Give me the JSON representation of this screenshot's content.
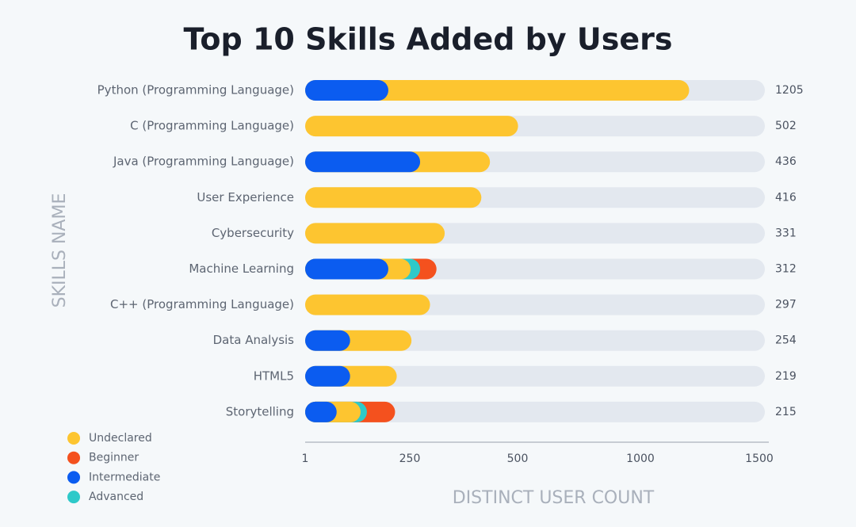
{
  "chart_data": {
    "type": "stacked_barh",
    "title": "Top 10 Skills Added by Users",
    "ylabel": "SKILLS NAME",
    "xlabel": "DISTINCT USER COUNT",
    "categories": [
      "Python (Programming Language)",
      "C (Programming Language)",
      "Java (Programming Language)",
      "User Experience",
      "Cybersecurity",
      "Machine Learning",
      "C++ (Programming Language)",
      "Data Analysis",
      "HTML5",
      "Storytelling"
    ],
    "totals": [
      1205,
      502,
      436,
      416,
      331,
      312,
      297,
      254,
      219,
      215
    ],
    "series": [
      {
        "name": "Intermediate",
        "color": "#0b5cf0",
        "values": [
          199,
          0,
          274,
          0,
          0,
          199,
          0,
          108,
          108,
          76
        ]
      },
      {
        "name": "Undeclared",
        "color": "#fdc530",
        "values": [
          1006,
          502,
          162,
          416,
          331,
          53,
          297,
          146,
          111,
          57
        ]
      },
      {
        "name": "Advanced",
        "color": "#2ec9c9",
        "values": [
          0,
          0,
          0,
          0,
          0,
          22,
          0,
          0,
          0,
          15
        ]
      },
      {
        "name": "Beginner",
        "color": "#f4511e",
        "values": [
          0,
          0,
          0,
          0,
          0,
          38,
          0,
          0,
          0,
          67
        ]
      }
    ],
    "legend_order": [
      "Undeclared",
      "Beginner",
      "Intermediate",
      "Advanced"
    ],
    "xlim": [
      1,
      1500
    ],
    "xticks": [
      1,
      250,
      500,
      1000,
      1500
    ],
    "track_color": "#e3e8ef"
  }
}
